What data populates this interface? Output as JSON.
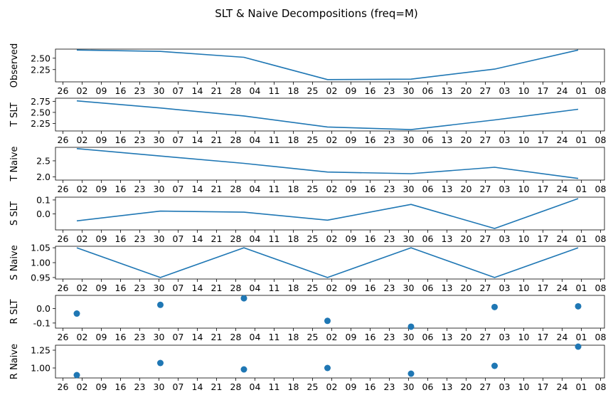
{
  "title": "SLT & Naive Decompositions (freq=M)",
  "x_tick_labels": [
    "26",
    "02",
    "09",
    "16",
    "23",
    "30",
    "07",
    "14",
    "21",
    "28",
    "04",
    "11",
    "18",
    "25",
    "02",
    "09",
    "16",
    "23",
    "30",
    "06",
    "13",
    "20",
    "27",
    "03",
    "10",
    "17",
    "24",
    "01",
    "08"
  ],
  "chart_data": [
    {
      "type": "line",
      "ylabel": "Observed",
      "yticks": [
        "2.25",
        "2.50"
      ],
      "ytick_values": [
        2.25,
        2.5
      ],
      "ylim": [
        1.98,
        2.7
      ],
      "series": [
        {
          "values": [
            2.68,
            2.65,
            2.52,
            2.03,
            2.04,
            2.26,
            2.68
          ]
        }
      ],
      "color": "#1f77b4"
    },
    {
      "type": "line",
      "ylabel": "T SLT",
      "yticks": [
        "2.25",
        "2.50",
        "2.75"
      ],
      "ytick_values": [
        2.25,
        2.5,
        2.75
      ],
      "ylim": [
        2.08,
        2.82
      ],
      "series": [
        {
          "values": [
            2.76,
            2.6,
            2.42,
            2.17,
            2.11,
            2.33,
            2.57
          ]
        }
      ],
      "color": "#1f77b4"
    },
    {
      "type": "line",
      "ylabel": "T Naive",
      "yticks": [
        "2.0",
        "2.5"
      ],
      "ytick_values": [
        2.0,
        2.5
      ],
      "ylim": [
        1.9,
        2.92
      ],
      "series": [
        {
          "values": [
            2.88,
            2.65,
            2.42,
            2.15,
            2.1,
            2.3,
            1.95
          ]
        }
      ],
      "color": "#1f77b4"
    },
    {
      "type": "line",
      "ylabel": "S SLT",
      "yticks": [
        "0.0",
        "0.1"
      ],
      "ytick_values": [
        0.0,
        0.1
      ],
      "ylim": [
        -0.115,
        0.12
      ],
      "series": [
        {
          "values": [
            -0.05,
            0.02,
            0.012,
            -0.045,
            0.068,
            -0.105,
            0.11
          ]
        }
      ],
      "color": "#1f77b4"
    },
    {
      "type": "line",
      "ylabel": "S Naive",
      "yticks": [
        "0.95",
        "1.00",
        "1.05"
      ],
      "ytick_values": [
        0.95,
        1.0,
        1.05
      ],
      "ylim": [
        0.945,
        1.055
      ],
      "series": [
        {
          "values": [
            1.05,
            0.95,
            1.05,
            0.95,
            1.05,
            0.95,
            1.05
          ]
        }
      ],
      "color": "#1f77b4"
    },
    {
      "type": "scatter",
      "ylabel": "R SLT",
      "yticks": [
        "-0.1",
        "0.0"
      ],
      "ytick_values": [
        -0.1,
        0.0
      ],
      "ylim": [
        -0.135,
        0.09
      ],
      "series": [
        {
          "values": [
            -0.035,
            0.025,
            0.07,
            -0.085,
            -0.125,
            0.01,
            0.015
          ]
        }
      ],
      "color": "#1f77b4"
    },
    {
      "type": "scatter",
      "ylabel": "R Naive",
      "yticks": [
        "1.00",
        "1.25"
      ],
      "ytick_values": [
        1.0,
        1.25
      ],
      "ylim": [
        0.86,
        1.32
      ],
      "series": [
        {
          "values": [
            0.9,
            1.07,
            0.98,
            1.0,
            0.92,
            1.03,
            1.3
          ]
        }
      ],
      "color": "#1f77b4"
    }
  ]
}
